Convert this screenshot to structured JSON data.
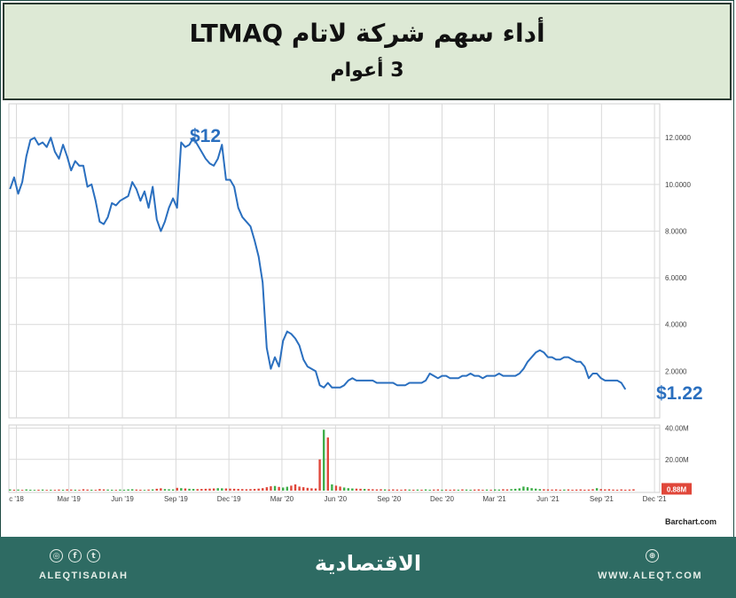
{
  "header": {
    "title": "أداء سهم شركة لاتام LTMAQ",
    "subtitle": "3 أعوام"
  },
  "annotations": {
    "peak": "$12",
    "last": "$1.22"
  },
  "chart_data": {
    "type": "line",
    "x_dates": [
      "2018-11-20",
      "2018-11-27",
      "2018-12-04",
      "2018-12-11",
      "2018-12-18",
      "2018-12-25",
      "2019-01-01",
      "2019-01-08",
      "2019-01-15",
      "2019-01-22",
      "2019-01-29",
      "2019-02-05",
      "2019-02-12",
      "2019-02-19",
      "2019-02-26",
      "2019-03-05",
      "2019-03-12",
      "2019-03-19",
      "2019-03-26",
      "2019-04-02",
      "2019-04-09",
      "2019-04-16",
      "2019-04-23",
      "2019-04-30",
      "2019-05-07",
      "2019-05-14",
      "2019-05-21",
      "2019-05-28",
      "2019-06-04",
      "2019-06-11",
      "2019-06-18",
      "2019-06-25",
      "2019-07-02",
      "2019-07-09",
      "2019-07-16",
      "2019-07-23",
      "2019-07-30",
      "2019-08-06",
      "2019-08-13",
      "2019-08-20",
      "2019-08-27",
      "2019-09-03",
      "2019-09-10",
      "2019-09-17",
      "2019-09-24",
      "2019-10-01",
      "2019-10-08",
      "2019-10-15",
      "2019-10-22",
      "2019-10-29",
      "2019-11-05",
      "2019-11-12",
      "2019-11-19",
      "2019-11-26",
      "2019-12-03",
      "2019-12-10",
      "2019-12-17",
      "2019-12-24",
      "2019-12-31",
      "2020-01-07",
      "2020-01-14",
      "2020-01-21",
      "2020-01-28",
      "2020-02-04",
      "2020-02-11",
      "2020-02-18",
      "2020-02-25",
      "2020-03-03",
      "2020-03-10",
      "2020-03-17",
      "2020-03-24",
      "2020-03-31",
      "2020-04-07",
      "2020-04-14",
      "2020-04-21",
      "2020-04-28",
      "2020-05-05",
      "2020-05-12",
      "2020-05-19",
      "2020-05-26",
      "2020-06-02",
      "2020-06-09",
      "2020-06-16",
      "2020-06-23",
      "2020-06-30",
      "2020-07-07",
      "2020-07-14",
      "2020-07-21",
      "2020-07-28",
      "2020-08-04",
      "2020-08-11",
      "2020-08-18",
      "2020-08-25",
      "2020-09-01",
      "2020-09-08",
      "2020-09-15",
      "2020-09-22",
      "2020-09-29",
      "2020-10-06",
      "2020-10-13",
      "2020-10-20",
      "2020-10-27",
      "2020-11-03",
      "2020-11-10",
      "2020-11-17",
      "2020-11-24",
      "2020-12-01",
      "2020-12-08",
      "2020-12-15",
      "2020-12-22",
      "2020-12-29",
      "2021-01-05",
      "2021-01-12",
      "2021-01-19",
      "2021-01-26",
      "2021-02-02",
      "2021-02-09",
      "2021-02-16",
      "2021-02-23",
      "2021-03-02",
      "2021-03-09",
      "2021-03-16",
      "2021-03-23",
      "2021-03-30",
      "2021-04-06",
      "2021-04-13",
      "2021-04-20",
      "2021-04-27",
      "2021-05-04",
      "2021-05-11",
      "2021-05-18",
      "2021-05-25",
      "2021-06-01",
      "2021-06-08",
      "2021-06-15",
      "2021-06-22",
      "2021-06-29",
      "2021-07-06",
      "2021-07-13",
      "2021-07-20",
      "2021-07-27",
      "2021-08-03",
      "2021-08-10",
      "2021-08-17",
      "2021-08-24",
      "2021-08-31",
      "2021-09-07",
      "2021-09-14",
      "2021-09-21",
      "2021-09-28",
      "2021-10-05",
      "2021-10-12",
      "2021-10-19",
      "2021-10-26",
      "2021-11-02",
      "2021-11-09",
      "2021-11-16",
      "2021-11-23",
      "2021-11-30",
      "2021-12-07"
    ],
    "price": [
      9.8,
      10.3,
      9.6,
      10.1,
      11.2,
      11.9,
      12.0,
      11.7,
      11.8,
      11.6,
      12.0,
      11.4,
      11.1,
      11.7,
      11.2,
      10.6,
      11.0,
      10.8,
      10.8,
      9.9,
      10.0,
      9.3,
      8.4,
      8.3,
      8.6,
      9.2,
      9.1,
      9.3,
      9.4,
      9.5,
      10.1,
      9.8,
      9.3,
      9.7,
      9.0,
      9.9,
      8.5,
      8.0,
      8.4,
      9.0,
      9.4,
      9.0,
      11.8,
      11.6,
      11.7,
      12.0,
      11.7,
      11.4,
      11.1,
      10.9,
      10.8,
      11.1,
      11.7,
      10.2,
      10.2,
      9.9,
      9.0,
      8.6,
      8.4,
      8.2,
      7.6,
      6.9,
      5.8,
      3.0,
      2.1,
      2.6,
      2.2,
      3.3,
      3.7,
      3.6,
      3.4,
      3.1,
      2.5,
      2.2,
      2.1,
      2.0,
      1.4,
      1.3,
      1.5,
      1.3,
      1.3,
      1.3,
      1.4,
      1.6,
      1.7,
      1.6,
      1.6,
      1.6,
      1.6,
      1.6,
      1.5,
      1.5,
      1.5,
      1.5,
      1.5,
      1.4,
      1.4,
      1.4,
      1.5,
      1.5,
      1.5,
      1.5,
      1.6,
      1.9,
      1.8,
      1.7,
      1.8,
      1.8,
      1.7,
      1.7,
      1.7,
      1.8,
      1.8,
      1.9,
      1.8,
      1.8,
      1.7,
      1.8,
      1.8,
      1.8,
      1.9,
      1.8,
      1.8,
      1.8,
      1.8,
      1.9,
      2.1,
      2.4,
      2.6,
      2.8,
      2.9,
      2.8,
      2.6,
      2.6,
      2.5,
      2.5,
      2.6,
      2.6,
      2.5,
      2.4,
      2.4,
      2.2,
      1.7,
      1.9,
      1.9,
      1.7,
      1.6,
      1.6,
      1.6,
      1.6,
      1.5,
      1.22
    ],
    "volume_m": [
      0.8,
      0.6,
      0.7,
      0.5,
      0.8,
      0.6,
      0.5,
      0.6,
      0.7,
      0.5,
      0.6,
      0.5,
      0.7,
      0.6,
      0.8,
      0.7,
      0.6,
      0.5,
      0.9,
      0.7,
      0.6,
      0.5,
      1.0,
      0.8,
      0.7,
      0.6,
      0.5,
      0.7,
      0.6,
      0.8,
      0.9,
      0.7,
      0.6,
      0.5,
      0.7,
      0.8,
      1.2,
      1.5,
      1.0,
      0.9,
      0.8,
      1.8,
      1.6,
      1.4,
      1.2,
      1.1,
      1.0,
      1.1,
      1.2,
      1.3,
      1.4,
      1.6,
      1.5,
      1.4,
      1.3,
      1.2,
      1.1,
      1.0,
      0.9,
      1.0,
      1.1,
      1.3,
      1.6,
      2.2,
      2.8,
      3.0,
      2.4,
      2.0,
      2.5,
      3.2,
      4.0,
      2.6,
      2.2,
      1.8,
      1.5,
      1.4,
      20.0,
      39.0,
      34.0,
      4.0,
      3.2,
      2.6,
      2.0,
      1.6,
      1.4,
      1.3,
      1.2,
      1.1,
      1.0,
      0.9,
      0.8,
      0.9,
      0.8,
      0.7,
      0.8,
      0.7,
      0.6,
      0.8,
      0.7,
      0.6,
      0.7,
      0.6,
      0.8,
      0.6,
      0.7,
      0.8,
      0.6,
      0.7,
      0.6,
      0.7,
      0.6,
      0.8,
      0.7,
      0.6,
      0.7,
      0.8,
      0.6,
      0.7,
      0.6,
      0.8,
      0.7,
      0.9,
      0.8,
      1.0,
      1.2,
      1.5,
      2.6,
      2.2,
      1.6,
      1.3,
      1.0,
      0.9,
      0.8,
      0.7,
      0.8,
      0.6,
      0.7,
      0.8,
      0.6,
      0.7,
      0.8,
      0.6,
      0.7,
      0.9,
      1.6,
      1.0,
      0.8,
      0.9,
      0.7,
      0.6,
      0.8,
      0.6,
      0.7,
      0.88
    ],
    "volume_up": [
      true,
      false,
      true,
      false,
      true,
      true,
      true,
      false,
      true,
      false,
      true,
      false,
      false,
      true,
      false,
      false,
      true,
      false,
      false,
      false,
      true,
      false,
      false,
      false,
      true,
      true,
      false,
      true,
      true,
      true,
      true,
      false,
      false,
      true,
      false,
      true,
      false,
      false,
      true,
      true,
      true,
      false,
      true,
      false,
      true,
      true,
      false,
      false,
      false,
      false,
      false,
      true,
      true,
      false,
      false,
      false,
      false,
      false,
      false,
      false,
      false,
      false,
      false,
      false,
      false,
      true,
      false,
      true,
      true,
      false,
      false,
      false,
      false,
      false,
      false,
      false,
      false,
      true,
      false,
      true,
      false,
      false,
      true,
      true,
      true,
      false,
      false,
      true,
      false,
      false,
      false,
      false,
      true,
      false,
      false,
      false,
      false,
      false,
      true,
      false,
      true,
      false,
      true,
      true,
      false,
      false,
      true,
      false,
      false,
      false,
      true,
      false,
      true,
      true,
      false,
      false,
      false,
      true,
      false,
      true,
      true,
      false,
      false,
      true,
      true,
      true,
      true,
      true,
      true,
      true,
      true,
      false,
      false,
      false,
      false,
      false,
      true,
      false,
      false,
      false,
      false,
      false,
      false,
      false,
      true,
      false,
      false,
      false,
      false,
      false,
      false,
      false,
      false,
      false
    ],
    "y_ticks": [
      "2.0000",
      "4.0000",
      "6.0000",
      "8.0000",
      "10.0000",
      "12.0000"
    ],
    "ylim": [
      0,
      13.3
    ],
    "volume_ticks": [
      "20.00M",
      "40.00M"
    ],
    "volume_ylim": [
      0,
      42
    ],
    "last_volume_label": "0.88M",
    "x_ticks": [
      {
        "date": "2018-12-01",
        "label": "c '18"
      },
      {
        "date": "2019-03-01",
        "label": "Mar '19"
      },
      {
        "date": "2019-06-01",
        "label": "Jun '19"
      },
      {
        "date": "2019-09-01",
        "label": "Sep '19"
      },
      {
        "date": "2019-12-01",
        "label": "Dec '19"
      },
      {
        "date": "2020-03-01",
        "label": "Mar '20"
      },
      {
        "date": "2020-06-01",
        "label": "Jun '20"
      },
      {
        "date": "2020-09-01",
        "label": "Sep '20"
      },
      {
        "date": "2020-12-01",
        "label": "Dec '20"
      },
      {
        "date": "2021-03-01",
        "label": "Mar '21"
      },
      {
        "date": "2021-06-01",
        "label": "Jun '21"
      },
      {
        "date": "2021-09-01",
        "label": "Sep '21"
      },
      {
        "date": "2021-12-01",
        "label": "Dec '21"
      }
    ],
    "source": "Barchart.com",
    "colors": {
      "line": "#2a6fbf",
      "up": "#3fae49",
      "down": "#e0473a",
      "grid": "#d9d9d9",
      "label": "#2a6fbf"
    }
  },
  "footer": {
    "handle": "ALEQTISADIAH",
    "logo": "الاقتصادية",
    "url": "WWW.ALEQT.COM",
    "social_icons": [
      "instagram-icon",
      "facebook-icon",
      "twitter-icon"
    ],
    "badge_icon": "globe-icon"
  }
}
